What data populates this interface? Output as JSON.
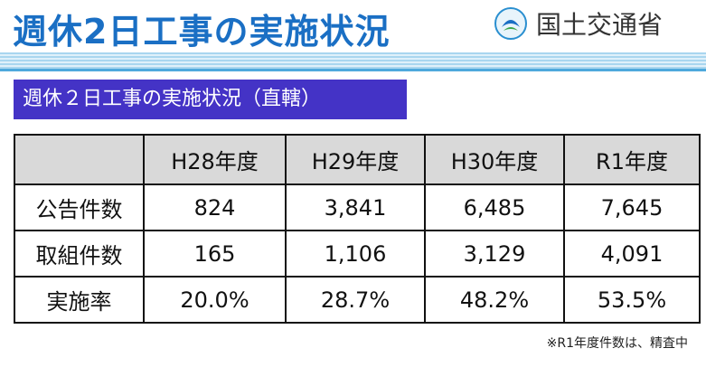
{
  "header": {
    "title": "週休2日工事の実施状況",
    "logo": "国土交通省"
  },
  "subtitle": "週休２日工事の実施状況（直轄）",
  "table": {
    "columns": [
      "H28年度",
      "H29年度",
      "H30年度",
      "R1年度"
    ],
    "rows": [
      {
        "label": "公告件数",
        "cells": [
          "824",
          "3,841",
          "6,485",
          "7,645"
        ]
      },
      {
        "label": "取組件数",
        "cells": [
          "165",
          "1,106",
          "3,129",
          "4,091"
        ]
      },
      {
        "label": "実施率",
        "cells": [
          "20.0%",
          "28.7%",
          "48.2%",
          "53.5%"
        ]
      }
    ]
  },
  "note": "※R1年度件数は、精査中"
}
